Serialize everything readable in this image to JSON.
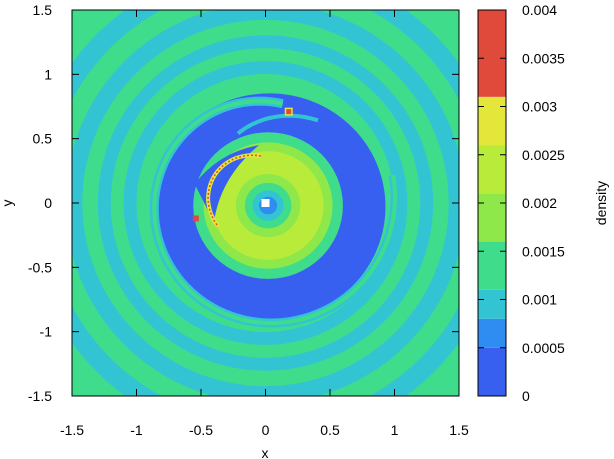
{
  "chart_data": {
    "type": "heatmap",
    "title": "",
    "xlabel": "x",
    "ylabel": "y",
    "xlim": [
      -1.5,
      1.5
    ],
    "ylim": [
      -1.5,
      1.5
    ],
    "x_ticks": [
      "-1.5",
      "-1",
      "-0.5",
      "0",
      "0.5",
      "1",
      "1.5"
    ],
    "y_ticks": [
      "1.5",
      "1",
      "0.5",
      "0",
      "-0.5",
      "-1",
      "-1.5"
    ],
    "colorbar": {
      "label": "density",
      "range": [
        0,
        0.004
      ],
      "ticks": [
        "0.004",
        "0.0035",
        "0.003",
        "0.0025",
        "0.002",
        "0.0015",
        "0.001",
        "0.0005",
        "0"
      ],
      "levels": [
        {
          "from": 0.0,
          "to": 0.0005,
          "color": "#3760f0"
        },
        {
          "from": 0.0005,
          "to": 0.0008,
          "color": "#2f8cf0"
        },
        {
          "from": 0.0008,
          "to": 0.0011,
          "color": "#33c4d4"
        },
        {
          "from": 0.0011,
          "to": 0.0016,
          "color": "#3fdc8c"
        },
        {
          "from": 0.0016,
          "to": 0.0021,
          "color": "#8ee84a"
        },
        {
          "from": 0.0021,
          "to": 0.0026,
          "color": "#b9ec3a"
        },
        {
          "from": 0.0026,
          "to": 0.0031,
          "color": "#e5e63a"
        },
        {
          "from": 0.0031,
          "to": 0.004,
          "color": "#e04a3a"
        }
      ]
    },
    "features": {
      "background_density": 0.0011,
      "central_star": {
        "x": 0,
        "y": 0,
        "color": "#ffffff"
      },
      "companion_peak": {
        "x": 0.18,
        "y": 0.71,
        "density": 0.0038
      },
      "inner_disk_density": 0.0023,
      "gap_density": 0.0004
    }
  }
}
